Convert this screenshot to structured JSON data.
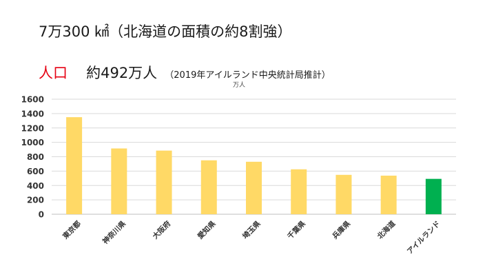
{
  "header": {
    "area_text": "7万300 ㎢（北海道の面積の約8割強）",
    "population_label": "人口",
    "population_value": "約492万人",
    "population_source": "（2019年アイルランド中央統計局推計）",
    "unit_label": "万人"
  },
  "chart_data": {
    "type": "bar",
    "categories": [
      "東京都",
      "神奈川県",
      "大阪府",
      "愛知県",
      "埼玉県",
      "千葉県",
      "兵庫県",
      "北海道",
      "アイルランド"
    ],
    "values": [
      1350,
      915,
      885,
      750,
      730,
      625,
      548,
      537,
      492
    ],
    "colors": [
      "#ffd966",
      "#ffd966",
      "#ffd966",
      "#ffd966",
      "#ffd966",
      "#ffd966",
      "#ffd966",
      "#ffd966",
      "#00b050"
    ],
    "ylim": [
      0,
      1600
    ],
    "yticks": [
      0,
      200,
      400,
      600,
      800,
      1000,
      1200,
      1400,
      1600
    ],
    "grid": true,
    "ylabel": "万人"
  }
}
